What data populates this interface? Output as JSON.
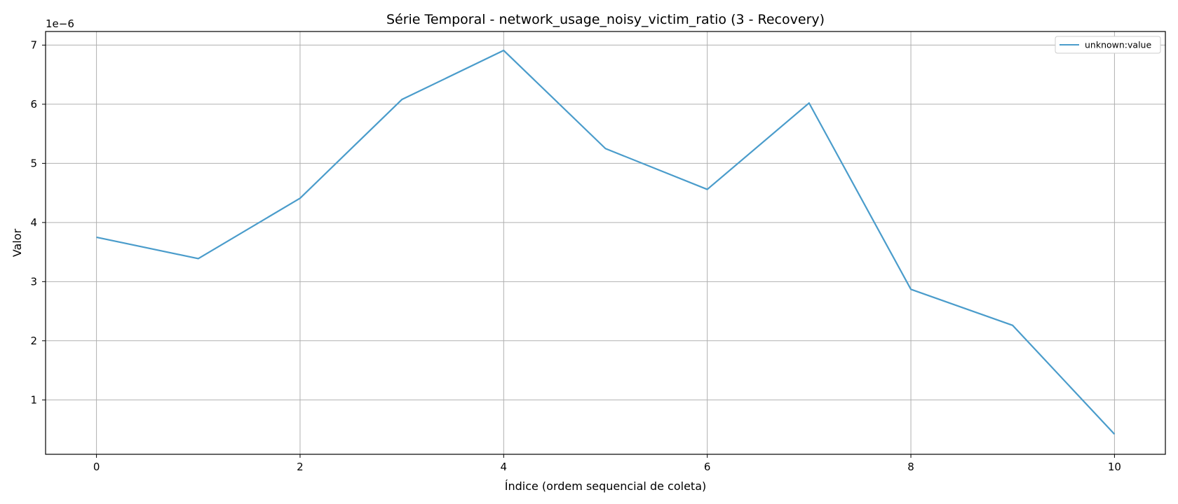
{
  "chart_data": {
    "type": "line",
    "title": "Série Temporal - network_usage_noisy_victim_ratio (3 - Recovery)",
    "xlabel": "Índice (ordem sequencial de coleta)",
    "ylabel": "Valor",
    "y_offset_label": "1e−6",
    "xlim": [
      -0.5,
      10.5
    ],
    "ylim": [
      0.08,
      7.23
    ],
    "x_ticks": [
      0,
      2,
      4,
      6,
      8,
      10
    ],
    "x_tick_labels": [
      "0",
      "2",
      "4",
      "6",
      "8",
      "10"
    ],
    "y_ticks": [
      1,
      2,
      3,
      4,
      5,
      6,
      7
    ],
    "y_tick_labels": [
      "1",
      "2",
      "3",
      "4",
      "5",
      "6",
      "7"
    ],
    "grid": true,
    "legend_position": "top-right",
    "series": [
      {
        "name": "unknown:value",
        "color": "#4a9ccb",
        "x": [
          0,
          1,
          2,
          3,
          4,
          5,
          6,
          7,
          8,
          9,
          10
        ],
        "values": [
          3.75,
          3.39,
          4.41,
          6.08,
          6.91,
          5.25,
          4.56,
          6.02,
          2.87,
          2.26,
          0.42
        ]
      }
    ]
  }
}
